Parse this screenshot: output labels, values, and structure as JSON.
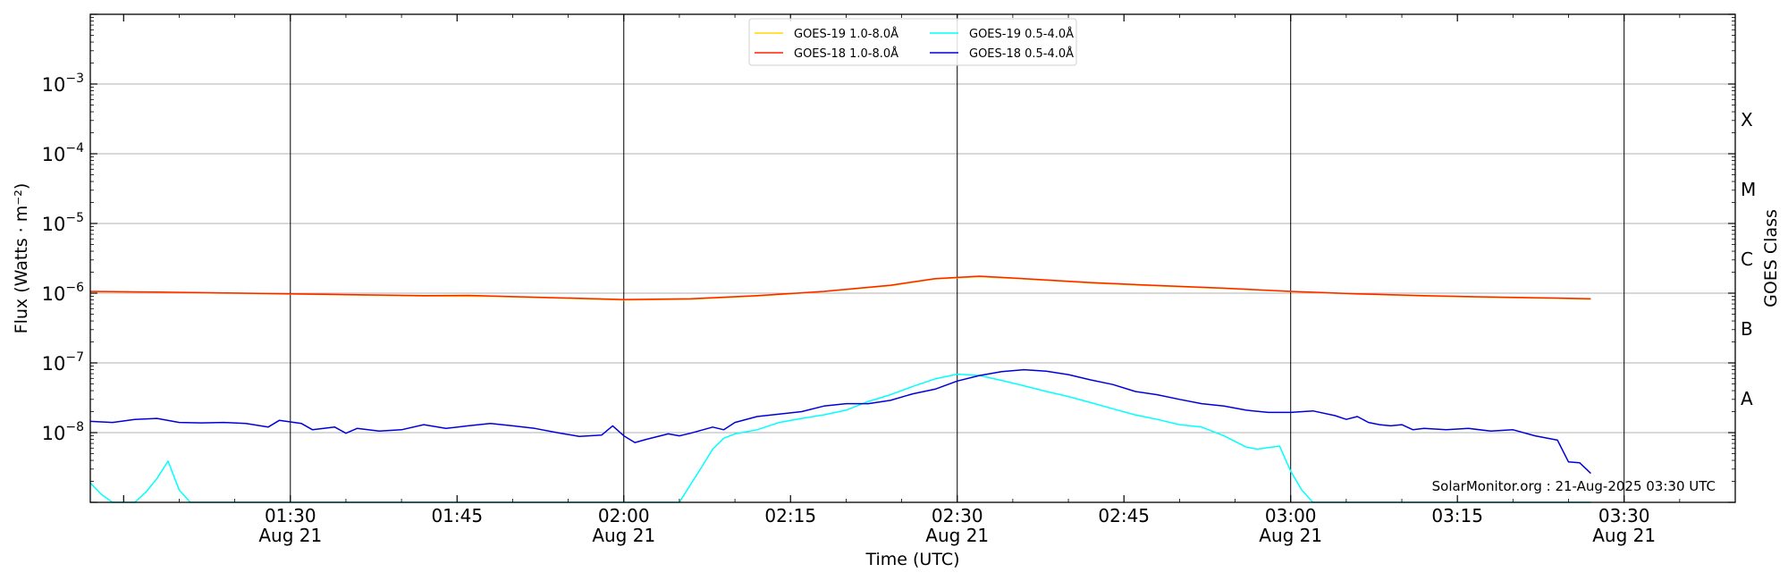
{
  "chart_data": {
    "type": "line",
    "xlabel": "Time (UTC)",
    "ylabel": "Flux (Watts · m⁻²)",
    "ylabel_right": "GOES Class",
    "yscale": "log",
    "xlim": [
      "01:12",
      "03:40"
    ],
    "ylim": [
      1e-09,
      0.01
    ],
    "x_ticks": [
      {
        "time": "01:30",
        "label": "01:30",
        "sublabel": "Aug 21"
      },
      {
        "time": "01:45",
        "label": "01:45",
        "sublabel": ""
      },
      {
        "time": "02:00",
        "label": "02:00",
        "sublabel": "Aug 21"
      },
      {
        "time": "02:15",
        "label": "02:15",
        "sublabel": ""
      },
      {
        "time": "02:30",
        "label": "02:30",
        "sublabel": "Aug 21"
      },
      {
        "time": "02:45",
        "label": "02:45",
        "sublabel": ""
      },
      {
        "time": "03:00",
        "label": "03:00",
        "sublabel": "Aug 21"
      },
      {
        "time": "03:15",
        "label": "03:15",
        "sublabel": ""
      },
      {
        "time": "03:30",
        "label": "03:30",
        "sublabel": "Aug 21"
      }
    ],
    "y_ticks": [
      {
        "value": 1e-08,
        "base": "10",
        "exp": "−8"
      },
      {
        "value": 1e-07,
        "base": "10",
        "exp": "−7"
      },
      {
        "value": 1e-06,
        "base": "10",
        "exp": "−6"
      },
      {
        "value": 1e-05,
        "base": "10",
        "exp": "−5"
      },
      {
        "value": 0.0001,
        "base": "10",
        "exp": "−4"
      },
      {
        "value": 0.001,
        "base": "10",
        "exp": "−3"
      }
    ],
    "goes_classes": [
      {
        "label": "A",
        "value": 3.16e-08
      },
      {
        "label": "B",
        "value": 3.16e-07
      },
      {
        "label": "C",
        "value": 3.16e-06
      },
      {
        "label": "M",
        "value": 3.16e-05
      },
      {
        "label": "X",
        "value": 0.000316
      }
    ],
    "vlines": [
      "01:30",
      "02:00",
      "02:30",
      "03:00",
      "03:30"
    ],
    "grid": "horizontal at decades",
    "legend_position": "top-center",
    "series": [
      {
        "name": "GOES-19 1.0-8.0Å",
        "color": "#ffd700",
        "points": [
          [
            "01:12",
            1.05e-06
          ],
          [
            "01:18",
            1.03e-06
          ],
          [
            "01:24",
            1e-06
          ],
          [
            "01:30",
            9.7e-07
          ],
          [
            "01:36",
            9.4e-07
          ],
          [
            "01:42",
            9.1e-07
          ],
          [
            "01:48",
            9e-07
          ],
          [
            "01:54",
            8.5e-07
          ],
          [
            "02:00",
            8e-07
          ],
          [
            "02:06",
            8.2e-07
          ],
          [
            "02:12",
            9.1e-07
          ],
          [
            "02:18",
            1.05e-06
          ],
          [
            "02:24",
            1.28e-06
          ],
          [
            "02:28",
            1.6e-06
          ],
          [
            "02:32",
            1.72e-06
          ],
          [
            "02:36",
            1.6e-06
          ],
          [
            "02:42",
            1.4e-06
          ],
          [
            "02:48",
            1.27e-06
          ],
          [
            "02:54",
            1.17e-06
          ],
          [
            "03:00",
            1.05e-06
          ],
          [
            "03:06",
            9.7e-07
          ],
          [
            "03:12",
            9.1e-07
          ],
          [
            "03:18",
            8.7e-07
          ],
          [
            "03:24",
            8.4e-07
          ],
          [
            "03:27",
            8.2e-07
          ]
        ]
      },
      {
        "name": "GOES-18 1.0-8.0Å",
        "color": "#ff2200",
        "points": [
          [
            "01:12",
            1.06e-06
          ],
          [
            "01:18",
            1.04e-06
          ],
          [
            "01:24",
            1.01e-06
          ],
          [
            "01:30",
            9.8e-07
          ],
          [
            "01:36",
            9.5e-07
          ],
          [
            "01:42",
            9.2e-07
          ],
          [
            "01:46",
            9.3e-07
          ],
          [
            "01:54",
            8.6e-07
          ],
          [
            "02:00",
            8.1e-07
          ],
          [
            "02:06",
            8.3e-07
          ],
          [
            "02:12",
            9.2e-07
          ],
          [
            "02:18",
            1.06e-06
          ],
          [
            "02:24",
            1.3e-06
          ],
          [
            "02:28",
            1.62e-06
          ],
          [
            "02:32",
            1.75e-06
          ],
          [
            "02:36",
            1.62e-06
          ],
          [
            "02:42",
            1.42e-06
          ],
          [
            "02:48",
            1.29e-06
          ],
          [
            "02:54",
            1.18e-06
          ],
          [
            "03:00",
            1.06e-06
          ],
          [
            "03:06",
            9.8e-07
          ],
          [
            "03:12",
            9.2e-07
          ],
          [
            "03:18",
            8.8e-07
          ],
          [
            "03:24",
            8.5e-07
          ],
          [
            "03:27",
            8.3e-07
          ]
        ]
      },
      {
        "name": "GOES-19 0.5-4.0Å",
        "color": "#00ffff",
        "points": [
          [
            "01:12",
            1.9e-09
          ],
          [
            "01:13",
            1.3e-09
          ],
          [
            "01:14",
            1e-09
          ],
          [
            "01:15",
            1e-09
          ],
          [
            "01:16",
            1e-09
          ],
          [
            "01:17",
            1.4e-09
          ],
          [
            "01:18",
            2.2e-09
          ],
          [
            "01:19",
            3.9e-09
          ],
          [
            "01:20",
            1.5e-09
          ],
          [
            "01:21",
            1e-09
          ],
          [
            "01:30",
            1e-09
          ],
          [
            "02:00",
            1e-09
          ],
          [
            "02:04",
            1e-09
          ],
          [
            "02:05",
            1e-09
          ],
          [
            "02:06",
            1.8e-09
          ],
          [
            "02:07",
            3.2e-09
          ],
          [
            "02:08",
            5.8e-09
          ],
          [
            "02:09",
            8.3e-09
          ],
          [
            "02:10",
            9.6e-09
          ],
          [
            "02:12",
            1.1e-08
          ],
          [
            "02:14",
            1.4e-08
          ],
          [
            "02:16",
            1.6e-08
          ],
          [
            "02:18",
            1.8e-08
          ],
          [
            "02:20",
            2.1e-08
          ],
          [
            "02:22",
            2.8e-08
          ],
          [
            "02:24",
            3.5e-08
          ],
          [
            "02:26",
            4.6e-08
          ],
          [
            "02:28",
            5.9e-08
          ],
          [
            "02:30",
            6.9e-08
          ],
          [
            "02:32",
            6.6e-08
          ],
          [
            "02:34",
            5.6e-08
          ],
          [
            "02:36",
            4.7e-08
          ],
          [
            "02:38",
            3.9e-08
          ],
          [
            "02:40",
            3.3e-08
          ],
          [
            "02:42",
            2.7e-08
          ],
          [
            "02:44",
            2.2e-08
          ],
          [
            "02:46",
            1.8e-08
          ],
          [
            "02:48",
            1.55e-08
          ],
          [
            "02:50",
            1.3e-08
          ],
          [
            "02:52",
            1.2e-08
          ],
          [
            "02:54",
            9e-09
          ],
          [
            "02:56",
            6.2e-09
          ],
          [
            "02:57",
            5.8e-09
          ],
          [
            "02:58",
            6.1e-09
          ],
          [
            "02:59",
            6.4e-09
          ],
          [
            "03:00",
            2.8e-09
          ],
          [
            "03:01",
            1.5e-09
          ],
          [
            "03:02",
            1e-09
          ],
          [
            "03:27",
            1e-09
          ]
        ]
      },
      {
        "name": "GOES-18 0.5-4.0Å",
        "color": "#0000dd",
        "points": [
          [
            "01:12",
            1.45e-08
          ],
          [
            "01:14",
            1.4e-08
          ],
          [
            "01:16",
            1.55e-08
          ],
          [
            "01:18",
            1.6e-08
          ],
          [
            "01:20",
            1.4e-08
          ],
          [
            "01:22",
            1.38e-08
          ],
          [
            "01:24",
            1.4e-08
          ],
          [
            "01:26",
            1.35e-08
          ],
          [
            "01:28",
            1.2e-08
          ],
          [
            "01:29",
            1.5e-08
          ],
          [
            "01:31",
            1.35e-08
          ],
          [
            "01:32",
            1.1e-08
          ],
          [
            "01:34",
            1.2e-08
          ],
          [
            "01:35",
            9.8e-09
          ],
          [
            "01:36",
            1.15e-08
          ],
          [
            "01:38",
            1.05e-08
          ],
          [
            "01:40",
            1.1e-08
          ],
          [
            "01:42",
            1.3e-08
          ],
          [
            "01:44",
            1.15e-08
          ],
          [
            "01:46",
            1.25e-08
          ],
          [
            "01:48",
            1.35e-08
          ],
          [
            "01:50",
            1.25e-08
          ],
          [
            "01:52",
            1.15e-08
          ],
          [
            "01:54",
            1e-08
          ],
          [
            "01:56",
            8.8e-09
          ],
          [
            "01:58",
            9.2e-09
          ],
          [
            "01:59",
            1.25e-08
          ],
          [
            "02:00",
            9e-09
          ],
          [
            "02:01",
            7.2e-09
          ],
          [
            "02:02",
            8e-09
          ],
          [
            "02:04",
            9.6e-09
          ],
          [
            "02:05",
            9e-09
          ],
          [
            "02:06",
            9.8e-09
          ],
          [
            "02:08",
            1.2e-08
          ],
          [
            "02:09",
            1.1e-08
          ],
          [
            "02:10",
            1.4e-08
          ],
          [
            "02:12",
            1.7e-08
          ],
          [
            "02:14",
            1.85e-08
          ],
          [
            "02:16",
            2e-08
          ],
          [
            "02:18",
            2.4e-08
          ],
          [
            "02:20",
            2.6e-08
          ],
          [
            "02:22",
            2.6e-08
          ],
          [
            "02:24",
            2.9e-08
          ],
          [
            "02:26",
            3.6e-08
          ],
          [
            "02:28",
            4.2e-08
          ],
          [
            "02:30",
            5.5e-08
          ],
          [
            "02:32",
            6.6e-08
          ],
          [
            "02:34",
            7.5e-08
          ],
          [
            "02:36",
            8e-08
          ],
          [
            "02:38",
            7.6e-08
          ],
          [
            "02:40",
            6.8e-08
          ],
          [
            "02:42",
            5.7e-08
          ],
          [
            "02:44",
            4.9e-08
          ],
          [
            "02:46",
            3.9e-08
          ],
          [
            "02:48",
            3.5e-08
          ],
          [
            "02:50",
            3e-08
          ],
          [
            "02:52",
            2.6e-08
          ],
          [
            "02:54",
            2.4e-08
          ],
          [
            "02:56",
            2.1e-08
          ],
          [
            "02:58",
            1.95e-08
          ],
          [
            "03:00",
            1.95e-08
          ],
          [
            "03:02",
            2.05e-08
          ],
          [
            "03:04",
            1.75e-08
          ],
          [
            "03:05",
            1.55e-08
          ],
          [
            "03:06",
            1.7e-08
          ],
          [
            "03:07",
            1.4e-08
          ],
          [
            "03:08",
            1.3e-08
          ],
          [
            "03:09",
            1.25e-08
          ],
          [
            "03:10",
            1.3e-08
          ],
          [
            "03:11",
            1.1e-08
          ],
          [
            "03:12",
            1.15e-08
          ],
          [
            "03:14",
            1.1e-08
          ],
          [
            "03:16",
            1.15e-08
          ],
          [
            "03:18",
            1.05e-08
          ],
          [
            "03:20",
            1.1e-08
          ],
          [
            "03:22",
            9e-09
          ],
          [
            "03:24",
            7.8e-09
          ],
          [
            "03:25",
            3.8e-09
          ],
          [
            "03:26",
            3.7e-09
          ],
          [
            "03:27",
            2.6e-09
          ]
        ]
      }
    ],
    "annotation": "SolarMonitor.org : 21-Aug-2025 03:30 UTC"
  }
}
